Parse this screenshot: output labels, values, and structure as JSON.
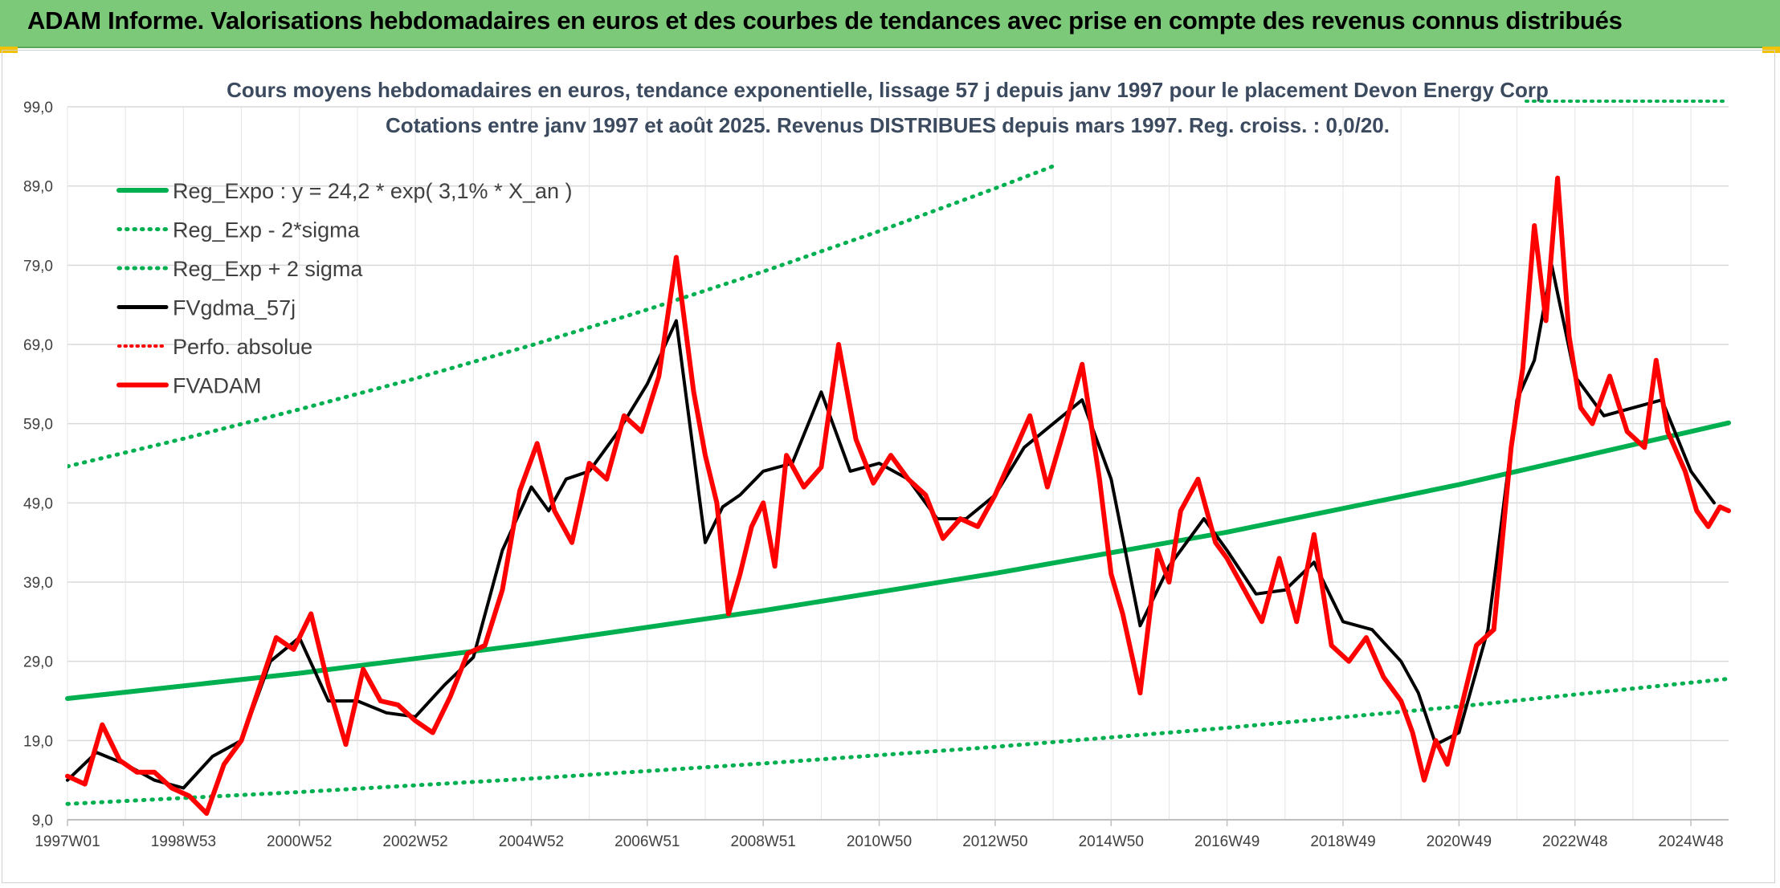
{
  "banner": {
    "title": "ADAM Informe. Valorisations hebdomadaires en euros et des courbes de tendances avec prise en compte des revenus connus distribués"
  },
  "colors": {
    "banner_bg": "#7dc97a",
    "regression": "#00b050",
    "price": "#ff0000",
    "smooth": "#000000",
    "grid": "#d9d9d9"
  },
  "chart_data": {
    "type": "line",
    "subtitle_line1": "Cours moyens hebdomadaires en euros, tendance exponentielle, lissage 57 j depuis janv 1997 pour le placement Devon Energy Corp",
    "subtitle_line2": "Cotations entre janv 1997 et août 2025. Revenus DISTRIBUES depuis mars 1997. Reg. croiss. : 0,0/20.",
    "ylim": [
      9,
      99
    ],
    "yticks": [
      "99,0",
      "89,0",
      "79,0",
      "69,0",
      "59,0",
      "49,0",
      "39,0",
      "29,0",
      "19,0",
      "9,0"
    ],
    "xlim": [
      1997.0,
      2025.65
    ],
    "xticks": [
      {
        "label": "1997W01",
        "x": 1997.0
      },
      {
        "label": "1998W53",
        "x": 1999.0
      },
      {
        "label": "2000W52",
        "x": 2001.0
      },
      {
        "label": "2002W52",
        "x": 2003.0
      },
      {
        "label": "2004W52",
        "x": 2005.0
      },
      {
        "label": "2006W51",
        "x": 2007.0
      },
      {
        "label": "2008W51",
        "x": 2009.0
      },
      {
        "label": "2010W50",
        "x": 2011.0
      },
      {
        "label": "2012W50",
        "x": 2013.0
      },
      {
        "label": "2014W50",
        "x": 2015.0
      },
      {
        "label": "2016W49",
        "x": 2017.0
      },
      {
        "label": "2018W49",
        "x": 2019.0
      },
      {
        "label": "2020W49",
        "x": 2021.0
      },
      {
        "label": "2022W48",
        "x": 2023.0
      },
      {
        "label": "2024W48",
        "x": 2025.0
      }
    ],
    "grid": true,
    "legend": {
      "placement": "top-left",
      "entries": [
        "Reg_Expo : y = 24,2 * exp( 3,1% *  X_an )",
        "Reg_Exp - 2*sigma",
        "Reg_Exp + 2 sigma",
        "FVgdma_57j",
        "Perfo. absolue",
        "FVADAM"
      ]
    },
    "series": [
      {
        "name": "Reg_Expo : y = 24,2 * exp( 3,1% *  X_an )",
        "style": "solid-thick",
        "color": "#00b050",
        "x": [
          1997.0,
          2001.0,
          2005.0,
          2009.0,
          2013.0,
          2017.0,
          2021.0,
          2025.65
        ],
        "y": [
          24.3,
          27.5,
          31.2,
          35.4,
          40.1,
          45.3,
          51.3,
          59.1
        ]
      },
      {
        "name": "Reg_Exp - 2*sigma",
        "style": "dotted",
        "color": "#00b050",
        "x": [
          1997.0,
          2001.0,
          2005.0,
          2009.0,
          2013.0,
          2017.0,
          2021.0,
          2025.65
        ],
        "y": [
          11.0,
          12.5,
          14.2,
          16.1,
          18.2,
          20.6,
          23.3,
          26.8
        ]
      },
      {
        "name": "Reg_Exp + 2 sigma",
        "style": "dotted",
        "color": "#00b050",
        "x": [
          1997.0,
          1999.0,
          2001.0,
          2003.0,
          2005.0,
          2007.0,
          2009.0,
          2011.0,
          2013.0,
          2014.0
        ],
        "y": [
          53.6,
          57.1,
          60.8,
          64.7,
          68.9,
          73.4,
          78.2,
          83.3,
          88.7,
          91.5
        ]
      },
      {
        "name": "FVgdma_57j",
        "style": "solid",
        "color": "#000000",
        "x": [
          1997.0,
          1997.5,
          1998.0,
          1998.5,
          1999.0,
          1999.5,
          2000.0,
          2000.5,
          2001.0,
          2001.5,
          2002.0,
          2002.5,
          2003.0,
          2003.5,
          2004.0,
          2004.5,
          2005.0,
          2005.3,
          2005.6,
          2006.0,
          2006.5,
          2007.0,
          2007.5,
          2008.0,
          2008.3,
          2008.6,
          2009.0,
          2009.5,
          2010.0,
          2010.5,
          2011.0,
          2011.5,
          2012.0,
          2012.5,
          2013.0,
          2013.5,
          2014.0,
          2014.5,
          2015.0,
          2015.5,
          2016.0,
          2016.3,
          2016.6,
          2017.0,
          2017.5,
          2018.0,
          2018.5,
          2019.0,
          2019.5,
          2020.0,
          2020.3,
          2020.6,
          2021.0,
          2021.5,
          2022.0,
          2022.3,
          2022.6,
          2023.0,
          2023.5,
          2024.0,
          2024.5,
          2025.0,
          2025.4
        ],
        "y": [
          14.0,
          17.5,
          16.0,
          14.0,
          13.0,
          17.0,
          19.0,
          29.0,
          32.0,
          24.0,
          24.0,
          22.5,
          22.0,
          26.0,
          29.5,
          43.0,
          51.0,
          48.0,
          52.0,
          53.0,
          58.0,
          64.0,
          72.0,
          44.0,
          48.5,
          50.0,
          53.0,
          54.0,
          63.0,
          53.0,
          54.0,
          52.0,
          47.0,
          47.0,
          50.0,
          56.0,
          59.0,
          62.0,
          52.0,
          33.5,
          41.0,
          44.0,
          47.0,
          43.0,
          37.5,
          38.0,
          41.5,
          34.0,
          33.0,
          29.0,
          25.0,
          18.5,
          20.0,
          33.0,
          62.0,
          67.0,
          79.0,
          65.0,
          60.0,
          61.0,
          62.0,
          53.0,
          49.0
        ]
      },
      {
        "name": "FVADAM",
        "style": "solid-thick",
        "color": "#ff0000",
        "x": [
          1997.0,
          1997.3,
          1997.6,
          1997.9,
          1998.2,
          1998.5,
          1998.8,
          1999.1,
          1999.4,
          1999.7,
          2000.0,
          2000.3,
          2000.6,
          2000.9,
          2001.2,
          2001.5,
          2001.8,
          2002.1,
          2002.4,
          2002.7,
          2003.0,
          2003.3,
          2003.6,
          2003.9,
          2004.2,
          2004.5,
          2004.8,
          2005.1,
          2005.4,
          2005.7,
          2006.0,
          2006.3,
          2006.6,
          2006.9,
          2007.2,
          2007.5,
          2007.8,
          2008.0,
          2008.2,
          2008.4,
          2008.6,
          2008.8,
          2009.0,
          2009.2,
          2009.4,
          2009.7,
          2010.0,
          2010.3,
          2010.6,
          2010.9,
          2011.2,
          2011.5,
          2011.8,
          2012.1,
          2012.4,
          2012.7,
          2013.0,
          2013.3,
          2013.6,
          2013.9,
          2014.2,
          2014.5,
          2014.8,
          2015.0,
          2015.2,
          2015.5,
          2015.8,
          2016.0,
          2016.2,
          2016.5,
          2016.8,
          2017.0,
          2017.3,
          2017.6,
          2017.9,
          2018.2,
          2018.5,
          2018.8,
          2019.1,
          2019.4,
          2019.7,
          2020.0,
          2020.2,
          2020.4,
          2020.6,
          2020.8,
          2021.0,
          2021.3,
          2021.6,
          2021.9,
          2022.1,
          2022.3,
          2022.5,
          2022.7,
          2022.9,
          2023.1,
          2023.3,
          2023.6,
          2023.9,
          2024.2,
          2024.4,
          2024.6,
          2024.9,
          2025.1,
          2025.3,
          2025.5,
          2025.65
        ],
        "y": [
          14.5,
          13.5,
          21.0,
          16.5,
          15.0,
          15.0,
          13.0,
          12.0,
          9.8,
          16.0,
          19.0,
          25.5,
          32.0,
          30.5,
          35.0,
          26.0,
          18.5,
          28.0,
          24.0,
          23.5,
          21.5,
          20.0,
          24.5,
          30.0,
          31.0,
          38.0,
          50.5,
          56.5,
          48.0,
          44.0,
          54.0,
          52.0,
          60.0,
          58.0,
          65.0,
          80.0,
          63.0,
          55.0,
          49.0,
          35.0,
          40.0,
          46.0,
          49.0,
          41.0,
          55.0,
          51.0,
          53.5,
          69.0,
          57.0,
          51.5,
          55.0,
          52.0,
          50.0,
          44.5,
          47.0,
          46.0,
          50.0,
          55.0,
          60.0,
          51.0,
          58.5,
          66.5,
          52.0,
          40.0,
          35.0,
          25.0,
          43.0,
          39.0,
          48.0,
          52.0,
          44.0,
          42.0,
          38.0,
          34.0,
          42.0,
          34.0,
          45.0,
          31.0,
          29.0,
          32.0,
          27.0,
          24.0,
          20.0,
          14.0,
          19.0,
          16.0,
          22.0,
          31.0,
          33.0,
          56.0,
          66.0,
          84.0,
          72.0,
          90.0,
          70.0,
          61.0,
          59.0,
          65.0,
          58.0,
          56.0,
          67.0,
          58.0,
          53.0,
          48.0,
          46.0,
          48.5,
          48.0
        ]
      }
    ]
  }
}
